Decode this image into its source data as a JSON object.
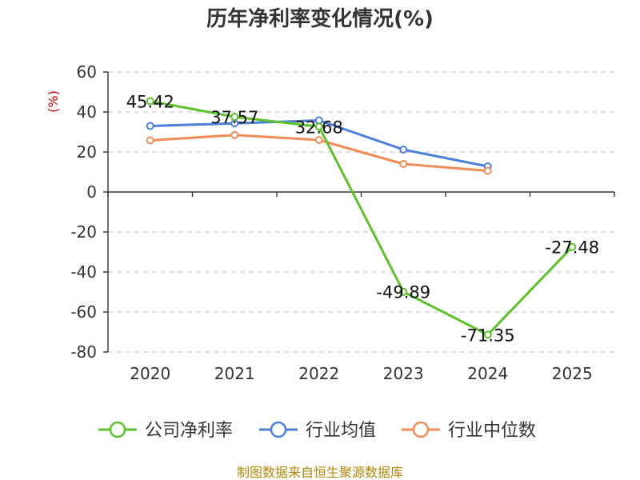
{
  "chart_data": {
    "type": "line",
    "title": "历年净利率变化情况(%)",
    "ylabel": "(%)",
    "xlabel": "",
    "categories": [
      "2020",
      "2021",
      "2022",
      "2023",
      "2024",
      "2025"
    ],
    "ylim": [
      -80,
      60
    ],
    "yticks": [
      60,
      40,
      20,
      0,
      -20,
      -40,
      -60,
      -80
    ],
    "ytick_labels": [
      "60",
      "40",
      "20",
      "0",
      "-20",
      "-40",
      "-60",
      "-80"
    ],
    "grid": true,
    "legend_position": "bottom",
    "series": [
      {
        "name": "公司净利率",
        "color": "#5ec12b",
        "values": [
          45.42,
          37.57,
          32.68,
          -49.89,
          -71.35,
          -27.48
        ],
        "labels": [
          "45.42",
          "37.57",
          "32.68",
          "-49.89",
          "-71.35",
          "-27.48"
        ]
      },
      {
        "name": "行业均值",
        "color": "#4a7fdb",
        "values": [
          33.0,
          34.3,
          35.8,
          21.2,
          12.8,
          null
        ]
      },
      {
        "name": "行业中位数",
        "color": "#f28c57",
        "values": [
          25.8,
          28.5,
          26.0,
          14.0,
          10.6,
          null
        ]
      }
    ]
  },
  "source": "制图数据来自恒生聚源数据库"
}
